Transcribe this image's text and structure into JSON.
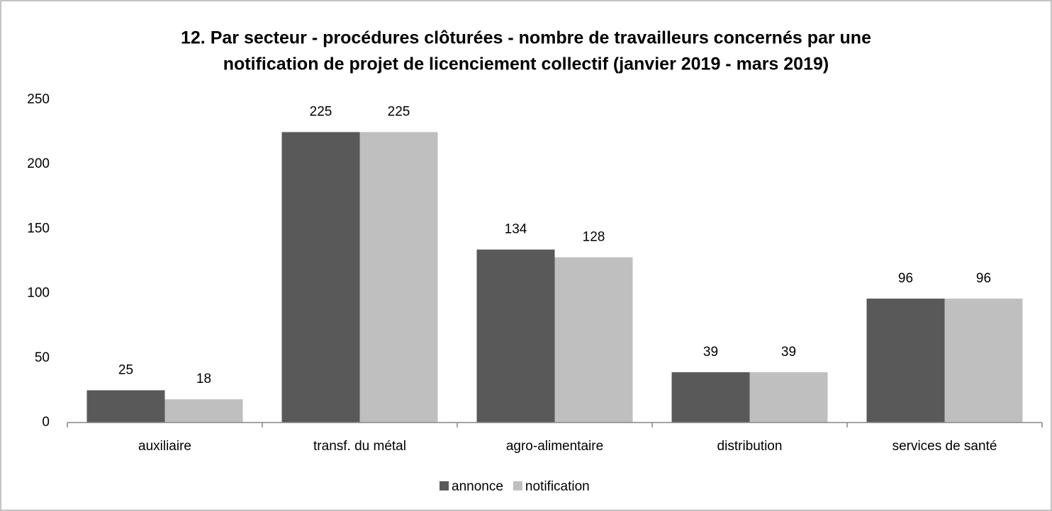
{
  "chart_data": {
    "type": "bar",
    "title": [
      "12. Par secteur - procédures clôturées  - nombre de travailleurs concernés par une",
      "notification de projet de licenciement collectif (janvier 2019 - mars 2019)"
    ],
    "categories": [
      "auxiliaire",
      "transf. du métal",
      "agro-alimentaire",
      "distribution",
      "services de santé"
    ],
    "series": [
      {
        "name": "annonce",
        "color": "#595959",
        "values": [
          25,
          225,
          134,
          39,
          96
        ]
      },
      {
        "name": "notification",
        "color": "#bfbfbf",
        "values": [
          18,
          225,
          128,
          39,
          96
        ]
      }
    ],
    "ylim": [
      0,
      250
    ],
    "yticks": [
      0,
      50,
      100,
      150,
      200,
      250
    ],
    "grid": false,
    "legend": "bottom"
  }
}
